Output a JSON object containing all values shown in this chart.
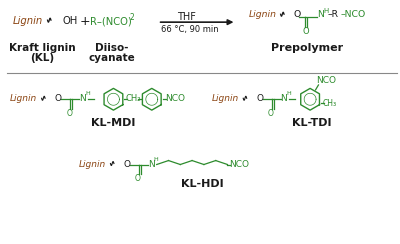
{
  "bg_color": "#ffffff",
  "lignin_color": "#8B4513",
  "green_color": "#2d8b2d",
  "black_color": "#1a1a1a",
  "fig_width": 4.0,
  "fig_height": 2.44,
  "dpi": 100,
  "label_kl": "Kraft lignin\n(KL)",
  "label_di": "Diiso-\ncyanate",
  "label_pre": "Prepolymer",
  "label_mdi": "KL-MDI",
  "label_tdi": "KL-TDI",
  "label_hdi": "KL-HDI",
  "thf": "THF",
  "conditions": "66 °C, 90 min"
}
